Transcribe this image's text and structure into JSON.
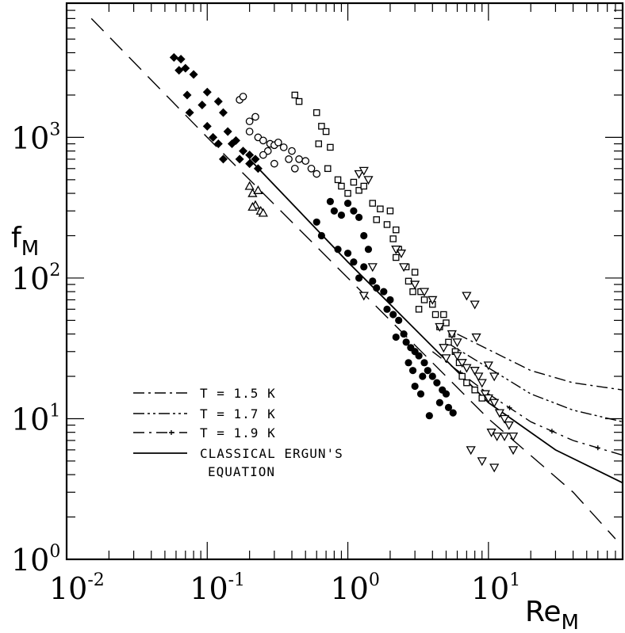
{
  "chart_data": {
    "type": "scatter",
    "x_scale": "log",
    "y_scale": "log",
    "xlim": [
      0.01,
      90
    ],
    "ylim": [
      1,
      9000
    ],
    "grid": false,
    "legend_position": "bottom-left",
    "xlabel": {
      "base": "Re",
      "sub": "M"
    },
    "ylabel": {
      "base": "f",
      "sub": "M"
    },
    "x_ticks": [
      {
        "value": 0.01,
        "base": "10",
        "exp": "-2"
      },
      {
        "value": 0.1,
        "base": "10",
        "exp": "-1"
      },
      {
        "value": 1,
        "base": "10",
        "exp": "0"
      },
      {
        "value": 10,
        "base": "10",
        "exp": "1"
      }
    ],
    "y_ticks": [
      {
        "value": 1,
        "base": "10",
        "exp": "0"
      },
      {
        "value": 10,
        "base": "10",
        "exp": "1"
      },
      {
        "value": 100,
        "base": "10",
        "exp": "2"
      },
      {
        "value": 1000,
        "base": "10",
        "exp": "3"
      }
    ],
    "legend": [
      {
        "label": "T = 1.5 K",
        "style": "dash-dot"
      },
      {
        "label": "T = 1.7 K",
        "style": "dash-dot-dot"
      },
      {
        "label": "T = 1.9 K",
        "style": "dash-plus"
      },
      {
        "label": "CLASSICAL ERGUN'S",
        "label2": "EQUATION",
        "style": "solid"
      }
    ],
    "lines": [
      {
        "style": "dash-dot",
        "x": [
          6,
          10,
          20,
          40,
          90
        ],
        "y": [
          40,
          31,
          22,
          18,
          16
        ]
      },
      {
        "style": "dash-dot-dot",
        "x": [
          5,
          10,
          20,
          40,
          90
        ],
        "y": [
          35,
          23,
          15,
          11.5,
          9.5
        ]
      },
      {
        "style": "dash-plus",
        "x": [
          4,
          10,
          20,
          40,
          90
        ],
        "y": [
          30,
          15,
          9.5,
          7,
          5.5
        ]
      },
      {
        "style": "solid",
        "x": [
          0.2,
          1,
          10,
          30,
          90
        ],
        "y": [
          700,
          130,
          13,
          6,
          3.5
        ]
      },
      {
        "style": "long-dash",
        "x": [
          0.015,
          0.1,
          1,
          10,
          40,
          80
        ],
        "y": [
          7000,
          1000,
          100,
          10,
          3,
          1.4
        ]
      }
    ],
    "series": [
      {
        "marker": "filled-diamond",
        "points": [
          [
            0.058,
            3700
          ],
          [
            0.065,
            3600
          ],
          [
            0.07,
            3100
          ],
          [
            0.063,
            3000
          ],
          [
            0.08,
            2800
          ],
          [
            0.072,
            2000
          ],
          [
            0.1,
            2100
          ],
          [
            0.092,
            1700
          ],
          [
            0.075,
            1500
          ],
          [
            0.12,
            1800
          ],
          [
            0.13,
            1500
          ],
          [
            0.1,
            1200
          ],
          [
            0.14,
            1100
          ],
          [
            0.11,
            1000
          ],
          [
            0.16,
            950
          ],
          [
            0.12,
            900
          ],
          [
            0.15,
            900
          ],
          [
            0.18,
            800
          ],
          [
            0.2,
            750
          ],
          [
            0.17,
            700
          ],
          [
            0.13,
            700
          ],
          [
            0.22,
            700
          ],
          [
            0.2,
            650
          ],
          [
            0.23,
            600
          ]
        ]
      },
      {
        "marker": "open-circle",
        "points": [
          [
            0.17,
            1850
          ],
          [
            0.18,
            1950
          ],
          [
            0.2,
            1300
          ],
          [
            0.22,
            1400
          ],
          [
            0.2,
            1100
          ],
          [
            0.23,
            1000
          ],
          [
            0.25,
            950
          ],
          [
            0.28,
            900
          ],
          [
            0.3,
            880
          ],
          [
            0.32,
            920
          ],
          [
            0.27,
            800
          ],
          [
            0.35,
            850
          ],
          [
            0.4,
            800
          ],
          [
            0.38,
            700
          ],
          [
            0.45,
            700
          ],
          [
            0.5,
            680
          ],
          [
            0.3,
            650
          ],
          [
            0.42,
            600
          ],
          [
            0.55,
            600
          ],
          [
            0.6,
            550
          ],
          [
            0.25,
            750
          ]
        ]
      },
      {
        "marker": "open-triangle",
        "points": [
          [
            0.2,
            450
          ],
          [
            0.21,
            400
          ],
          [
            0.22,
            330
          ],
          [
            0.23,
            420
          ],
          [
            0.21,
            320
          ],
          [
            0.24,
            300
          ],
          [
            0.25,
            290
          ]
        ]
      },
      {
        "marker": "open-square",
        "points": [
          [
            0.42,
            2000
          ],
          [
            0.45,
            1800
          ],
          [
            0.6,
            1500
          ],
          [
            0.65,
            1200
          ],
          [
            0.7,
            1100
          ],
          [
            0.62,
            900
          ],
          [
            0.75,
            850
          ],
          [
            0.72,
            600
          ],
          [
            0.85,
            500
          ],
          [
            0.9,
            450
          ],
          [
            1.1,
            480
          ],
          [
            1.2,
            420
          ],
          [
            1.3,
            450
          ],
          [
            1.0,
            400
          ],
          [
            1.5,
            340
          ],
          [
            1.7,
            310
          ],
          [
            2.0,
            300
          ],
          [
            1.6,
            260
          ],
          [
            1.9,
            240
          ],
          [
            2.2,
            220
          ],
          [
            2.1,
            190
          ],
          [
            2.3,
            160
          ],
          [
            2.2,
            140
          ],
          [
            2.6,
            120
          ],
          [
            3.0,
            110
          ],
          [
            2.7,
            95
          ],
          [
            2.9,
            80
          ],
          [
            3.3,
            80
          ],
          [
            3.5,
            70
          ],
          [
            3.2,
            60
          ],
          [
            4.0,
            65
          ],
          [
            4.2,
            55
          ],
          [
            4.8,
            55
          ],
          [
            5.0,
            48
          ],
          [
            4.5,
            45
          ],
          [
            5.5,
            40
          ],
          [
            5.2,
            35
          ],
          [
            5.8,
            30
          ],
          [
            6.2,
            25
          ],
          [
            6.5,
            20
          ],
          [
            7.0,
            18
          ],
          [
            8.0,
            16
          ],
          [
            9.0,
            14
          ]
        ]
      },
      {
        "marker": "open-triangle-down",
        "points": [
          [
            1.2,
            550
          ],
          [
            1.3,
            580
          ],
          [
            1.4,
            500
          ],
          [
            2.2,
            160
          ],
          [
            2.4,
            150
          ],
          [
            2.5,
            120
          ],
          [
            1.5,
            120
          ],
          [
            3.0,
            90
          ],
          [
            3.5,
            80
          ],
          [
            4.0,
            70
          ],
          [
            7.0,
            75
          ],
          [
            8.0,
            65
          ],
          [
            4.5,
            45
          ],
          [
            5.5,
            40
          ],
          [
            6.0,
            35
          ],
          [
            4.8,
            32
          ],
          [
            6.5,
            25
          ],
          [
            7.0,
            23
          ],
          [
            8.0,
            22
          ],
          [
            8.5,
            20
          ],
          [
            9.0,
            18
          ],
          [
            10.0,
            24
          ],
          [
            11.0,
            20
          ],
          [
            9.5,
            15
          ],
          [
            10.0,
            14
          ],
          [
            11.0,
            13
          ],
          [
            12.0,
            11
          ],
          [
            13.0,
            10
          ],
          [
            14.0,
            9
          ],
          [
            10.5,
            8
          ],
          [
            11.5,
            7.5
          ],
          [
            13.0,
            7.5
          ],
          [
            15.0,
            7.5
          ],
          [
            7.5,
            6
          ],
          [
            9.0,
            5
          ],
          [
            11.0,
            4.5
          ],
          [
            15.0,
            6
          ],
          [
            1.3,
            75
          ],
          [
            5.0,
            27
          ],
          [
            6.0,
            28
          ],
          [
            8.2,
            38
          ]
        ]
      },
      {
        "marker": "filled-circle",
        "points": [
          [
            0.6,
            250
          ],
          [
            0.75,
            350
          ],
          [
            0.8,
            300
          ],
          [
            0.9,
            280
          ],
          [
            1.0,
            340
          ],
          [
            1.1,
            300
          ],
          [
            1.2,
            270
          ],
          [
            0.65,
            200
          ],
          [
            0.85,
            160
          ],
          [
            1.0,
            150
          ],
          [
            1.1,
            130
          ],
          [
            1.3,
            120
          ],
          [
            1.2,
            100
          ],
          [
            1.5,
            95
          ],
          [
            1.6,
            85
          ],
          [
            1.8,
            80
          ],
          [
            2.0,
            70
          ],
          [
            1.9,
            60
          ],
          [
            2.1,
            55
          ],
          [
            2.3,
            50
          ],
          [
            2.5,
            40
          ],
          [
            2.2,
            38
          ],
          [
            2.6,
            35
          ],
          [
            2.8,
            32
          ],
          [
            3.0,
            30
          ],
          [
            3.2,
            28
          ],
          [
            2.7,
            25
          ],
          [
            3.5,
            25
          ],
          [
            3.7,
            22
          ],
          [
            3.4,
            20
          ],
          [
            4.0,
            20
          ],
          [
            4.3,
            18
          ],
          [
            4.7,
            16
          ],
          [
            5.0,
            15
          ],
          [
            4.5,
            13
          ],
          [
            5.2,
            12
          ],
          [
            5.6,
            11
          ],
          [
            3.8,
            10.5
          ],
          [
            3.0,
            17
          ],
          [
            3.3,
            15
          ],
          [
            2.9,
            22
          ],
          [
            1.3,
            200
          ],
          [
            1.4,
            160
          ]
        ]
      }
    ]
  }
}
